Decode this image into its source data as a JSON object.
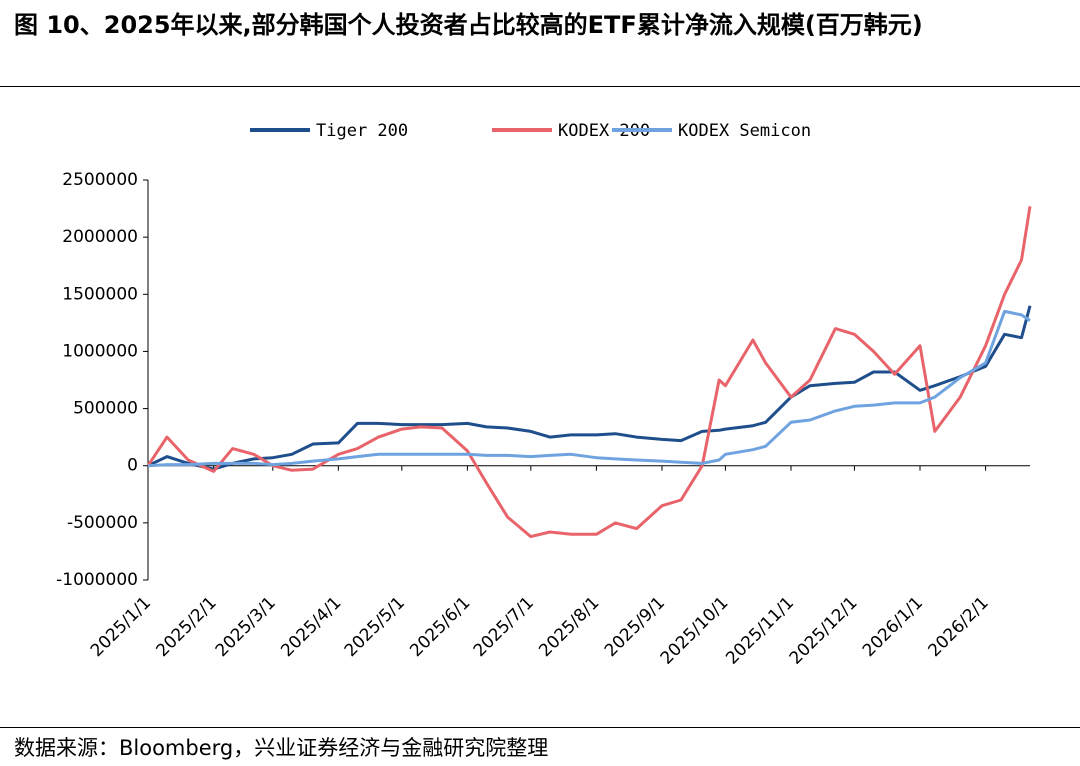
{
  "chart_data": {
    "type": "line",
    "title": "图 10、2025年以来,部分韩国个人投资者占比较高的ETF累计净流入规模(百万韩元)",
    "source": "数据来源：Bloomberg，兴业证券经济与金融研究院整理",
    "x": [
      "2025/1/1",
      "2025/1/10",
      "2025/1/20",
      "2025/2/1",
      "2025/2/10",
      "2025/2/20",
      "2025/3/1",
      "2025/3/10",
      "2025/3/20",
      "2025/4/1",
      "2025/4/10",
      "2025/4/20",
      "2025/5/1",
      "2025/5/10",
      "2025/5/20",
      "2025/6/1",
      "2025/6/10",
      "2025/6/20",
      "2025/7/1",
      "2025/7/10",
      "2025/7/20",
      "2025/8/1",
      "2025/8/10",
      "2025/8/20",
      "2025/9/1",
      "2025/9/10",
      "2025/9/20",
      "2025/9/28",
      "2025/10/1",
      "2025/10/14",
      "2025/10/20",
      "2025/11/1",
      "2025/11/10",
      "2025/11/22",
      "2025/12/1",
      "2025/12/10",
      "2025/12/20",
      "2026/1/1",
      "2026/1/8",
      "2026/1/20",
      "2026/2/1",
      "2026/2/10",
      "2026/2/18",
      "2026/2/22"
    ],
    "series": [
      {
        "name": "Tiger 200",
        "color": "#1f4e8c",
        "values": [
          0,
          80000,
          20000,
          -30000,
          20000,
          60000,
          70000,
          100000,
          190000,
          200000,
          370000,
          370000,
          360000,
          360000,
          360000,
          370000,
          340000,
          330000,
          300000,
          250000,
          270000,
          270000,
          280000,
          250000,
          230000,
          220000,
          300000,
          310000,
          320000,
          350000,
          380000,
          600000,
          700000,
          720000,
          730000,
          820000,
          820000,
          660000,
          700000,
          780000,
          870000,
          1150000,
          1120000,
          1400000
        ]
      },
      {
        "name": "KODEX 200",
        "color": "#e8636a",
        "values": [
          0,
          250000,
          50000,
          -50000,
          150000,
          100000,
          0,
          -40000,
          -30000,
          100000,
          150000,
          250000,
          320000,
          340000,
          330000,
          130000,
          -150000,
          -450000,
          -620000,
          -580000,
          -600000,
          -600000,
          -500000,
          -550000,
          -350000,
          -300000,
          0,
          750000,
          700000,
          1100000,
          900000,
          600000,
          750000,
          1200000,
          1150000,
          1000000,
          800000,
          1050000,
          300000,
          600000,
          1050000,
          1500000,
          1800000,
          2270000
        ]
      },
      {
        "name": "KODEX Semicon",
        "color": "#6fa3e0",
        "values": [
          0,
          10000,
          10000,
          20000,
          20000,
          20000,
          10000,
          20000,
          40000,
          60000,
          80000,
          100000,
          100000,
          100000,
          100000,
          100000,
          90000,
          90000,
          80000,
          90000,
          100000,
          70000,
          60000,
          50000,
          40000,
          30000,
          20000,
          50000,
          100000,
          140000,
          170000,
          380000,
          400000,
          480000,
          520000,
          530000,
          550000,
          550000,
          600000,
          770000,
          900000,
          1350000,
          1320000,
          1270000
        ]
      }
    ],
    "xlim": [
      "2025/1/1",
      "2026/2/22"
    ],
    "xticks": [
      "2025/1/1",
      "2025/2/1",
      "2025/3/1",
      "2025/4/1",
      "2025/5/1",
      "2025/6/1",
      "2025/7/1",
      "2025/8/1",
      "2025/9/1",
      "2025/10/1",
      "2025/11/1",
      "2025/12/1",
      "2026/1/1",
      "2026/2/1"
    ],
    "ylim": [
      -1000000,
      2500000
    ],
    "yticks": [
      -1000000,
      -500000,
      0,
      500000,
      1000000,
      1500000,
      2000000,
      2500000
    ],
    "grid": false,
    "legend": "top"
  }
}
